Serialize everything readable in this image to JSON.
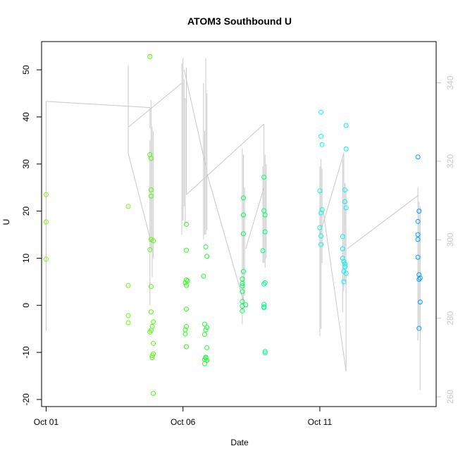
{
  "chart_data": {
    "type": "scatter",
    "title": "ATOM3 Southbound U",
    "xlabel": "Date",
    "ylabel": "U",
    "x_axis": {
      "type": "date",
      "range": [
        "2020-09-30T20:00",
        "2020-10-15T06:00"
      ],
      "ticks": [
        {
          "value": "2020-10-01",
          "label": "Oct 01"
        },
        {
          "value": "2020-10-06",
          "label": "Oct 06"
        },
        {
          "value": "2020-10-11",
          "label": "Oct 11"
        }
      ]
    },
    "ylim": [
      -21.5,
      56
    ],
    "y_ticks": [
      -20,
      -10,
      0,
      10,
      20,
      30,
      40,
      50
    ],
    "y2lim": [
      257.5,
      350.5
    ],
    "y2_ticks": [
      260,
      280,
      300,
      320,
      340
    ],
    "grid": false,
    "colors": {
      "line": "#c8c8c8",
      "axis": "#000000",
      "right_axis": "#c8c8c8"
    },
    "points": [
      {
        "x": "2020-10-01T00:00",
        "y": 23.5,
        "color": "#7cfc00"
      },
      {
        "x": "2020-10-01T00:00",
        "y": 17.7,
        "color": "#7cfc00"
      },
      {
        "x": "2020-10-01T00:00",
        "y": 9.8,
        "color": "#7cfc00"
      },
      {
        "x": "2020-10-04T00:00",
        "y": 21.0,
        "color": "#66ff00"
      },
      {
        "x": "2020-10-04T00:00",
        "y": 4.2,
        "color": "#66ff00"
      },
      {
        "x": "2020-10-04T00:00",
        "y": -2.2,
        "color": "#66ff00"
      },
      {
        "x": "2020-10-04T00:00",
        "y": -3.7,
        "color": "#66ff00"
      },
      {
        "x": "2020-10-04T19:00",
        "y": 52.8,
        "color": "#4cff00"
      },
      {
        "x": "2020-10-04T19:00",
        "y": 32.0,
        "color": "#4cff00"
      },
      {
        "x": "2020-10-04T20:00",
        "y": 31.2,
        "color": "#4cff00"
      },
      {
        "x": "2020-10-04T20:00",
        "y": 24.5,
        "color": "#4cff00"
      },
      {
        "x": "2020-10-04T20:00",
        "y": 23.2,
        "color": "#4cff00"
      },
      {
        "x": "2020-10-04T19:00",
        "y": 11.8,
        "color": "#4cff00"
      },
      {
        "x": "2020-10-04T20:00",
        "y": 14.0,
        "color": "#4cff00"
      },
      {
        "x": "2020-10-04T22:00",
        "y": 13.7,
        "color": "#4cff00"
      },
      {
        "x": "2020-10-04T20:00",
        "y": 4.0,
        "color": "#4cff00"
      },
      {
        "x": "2020-10-04T20:00",
        "y": -1.4,
        "color": "#4cff00"
      },
      {
        "x": "2020-10-04T22:00",
        "y": -3.5,
        "color": "#4cff00"
      },
      {
        "x": "2020-10-04T21:00",
        "y": -4.5,
        "color": "#4cff00"
      },
      {
        "x": "2020-10-04T20:00",
        "y": -5.3,
        "color": "#4cff00"
      },
      {
        "x": "2020-10-04T19:00",
        "y": -5.7,
        "color": "#4cff00"
      },
      {
        "x": "2020-10-04T22:00",
        "y": -8.1,
        "color": "#4cff00"
      },
      {
        "x": "2020-10-04T22:00",
        "y": -10.3,
        "color": "#4cff00"
      },
      {
        "x": "2020-10-04T21:00",
        "y": -10.7,
        "color": "#4cff00"
      },
      {
        "x": "2020-10-04T21:00",
        "y": -11.1,
        "color": "#4cff00"
      },
      {
        "x": "2020-10-04T22:00",
        "y": -18.7,
        "color": "#4cff00"
      },
      {
        "x": "2020-10-06T03:00",
        "y": 17.2,
        "color": "#2dff1a"
      },
      {
        "x": "2020-10-06T03:00",
        "y": 11.7,
        "color": "#2dff1a"
      },
      {
        "x": "2020-10-06T03:00",
        "y": 5.4,
        "color": "#2dff1a"
      },
      {
        "x": "2020-10-06T04:00",
        "y": 5.2,
        "color": "#2dff1a"
      },
      {
        "x": "2020-10-06T02:00",
        "y": 4.8,
        "color": "#2dff1a"
      },
      {
        "x": "2020-10-06T03:00",
        "y": 4.2,
        "color": "#2dff1a"
      },
      {
        "x": "2020-10-06T03:00",
        "y": -0.8,
        "color": "#2dff1a"
      },
      {
        "x": "2020-10-06T03:00",
        "y": -4.5,
        "color": "#2dff1a"
      },
      {
        "x": "2020-10-06T02:00",
        "y": -5.2,
        "color": "#2dff1a"
      },
      {
        "x": "2020-10-06T02:00",
        "y": -6.1,
        "color": "#2dff1a"
      },
      {
        "x": "2020-10-06T03:00",
        "y": -8.8,
        "color": "#2dff1a"
      },
      {
        "x": "2020-10-06T20:00",
        "y": 12.4,
        "color": "#1aff2d"
      },
      {
        "x": "2020-10-06T21:00",
        "y": 10.4,
        "color": "#1aff2d"
      },
      {
        "x": "2020-10-06T18:00",
        "y": 6.2,
        "color": "#1aff2d"
      },
      {
        "x": "2020-10-06T19:00",
        "y": -4.0,
        "color": "#1aff2d"
      },
      {
        "x": "2020-10-06T21:00",
        "y": -4.7,
        "color": "#1aff2d"
      },
      {
        "x": "2020-10-06T20:00",
        "y": -5.2,
        "color": "#1aff2d"
      },
      {
        "x": "2020-10-06T19:00",
        "y": -6.2,
        "color": "#1aff2d"
      },
      {
        "x": "2020-10-06T21:00",
        "y": -9.0,
        "color": "#1aff2d"
      },
      {
        "x": "2020-10-06T20:00",
        "y": -11.0,
        "color": "#1aff2d"
      },
      {
        "x": "2020-10-06T19:00",
        "y": -11.5,
        "color": "#1aff2d"
      },
      {
        "x": "2020-10-06T21:00",
        "y": -11.7,
        "color": "#1aff2d"
      },
      {
        "x": "2020-10-06T19:00",
        "y": -12.4,
        "color": "#1aff2d"
      },
      {
        "x": "2020-10-06T20:00",
        "y": -11.2,
        "color": "#1aff2d"
      },
      {
        "x": "2020-10-08T05:00",
        "y": 22.8,
        "color": "#00ff55"
      },
      {
        "x": "2020-10-08T05:00",
        "y": 19.2,
        "color": "#00ff55"
      },
      {
        "x": "2020-10-08T05:00",
        "y": 15.2,
        "color": "#00ff55"
      },
      {
        "x": "2020-10-08T05:00",
        "y": 7.2,
        "color": "#00ff55"
      },
      {
        "x": "2020-10-08T04:00",
        "y": 5.6,
        "color": "#00ff55"
      },
      {
        "x": "2020-10-08T04:00",
        "y": 4.6,
        "color": "#00ff55"
      },
      {
        "x": "2020-10-08T04:00",
        "y": 4.1,
        "color": "#00ff55"
      },
      {
        "x": "2020-10-08T04:00",
        "y": 2.9,
        "color": "#00ff55"
      },
      {
        "x": "2020-10-08T04:00",
        "y": 0.8,
        "color": "#00ff55"
      },
      {
        "x": "2020-10-08T07:00",
        "y": 0.1,
        "color": "#00ff55"
      },
      {
        "x": "2020-10-08T04:00",
        "y": -0.2,
        "color": "#00ff55"
      },
      {
        "x": "2020-10-08T04:00",
        "y": -1.2,
        "color": "#00ff55"
      },
      {
        "x": "2020-10-08T23:00",
        "y": 27.2,
        "color": "#00ff80"
      },
      {
        "x": "2020-10-08T23:00",
        "y": 20.1,
        "color": "#00ff80"
      },
      {
        "x": "2020-10-09T00:00",
        "y": 19.2,
        "color": "#00ff80"
      },
      {
        "x": "2020-10-09T00:00",
        "y": 15.6,
        "color": "#00ff80"
      },
      {
        "x": "2020-10-08T22:00",
        "y": 11.6,
        "color": "#00ff80"
      },
      {
        "x": "2020-10-09T00:00",
        "y": 4.8,
        "color": "#00ff80"
      },
      {
        "x": "2020-10-08T23:00",
        "y": 4.5,
        "color": "#00ff80"
      },
      {
        "x": "2020-10-08T23:00",
        "y": 0.2,
        "color": "#00ff80"
      },
      {
        "x": "2020-10-08T23:00",
        "y": -0.3,
        "color": "#00ff80"
      },
      {
        "x": "2020-10-08T23:00",
        "y": -0.5,
        "color": "#00ff80"
      },
      {
        "x": "2020-10-09T00:00",
        "y": -9.8,
        "color": "#00ff80"
      },
      {
        "x": "2020-10-09T00:00",
        "y": -10.1,
        "color": "#00ff80"
      },
      {
        "x": "2020-10-11T01:00",
        "y": 41.0,
        "color": "#00ffe0"
      },
      {
        "x": "2020-10-11T01:00",
        "y": 35.9,
        "color": "#00ffe0"
      },
      {
        "x": "2020-10-11T02:00",
        "y": 34.1,
        "color": "#00ffe0"
      },
      {
        "x": "2020-10-11T00:00",
        "y": 24.3,
        "color": "#00ffe0"
      },
      {
        "x": "2020-10-11T02:00",
        "y": 20.3,
        "color": "#00ffe0"
      },
      {
        "x": "2020-10-11T01:00",
        "y": 19.6,
        "color": "#00ffe0"
      },
      {
        "x": "2020-10-11T00:00",
        "y": 16.5,
        "color": "#00ffe0"
      },
      {
        "x": "2020-10-11T01:00",
        "y": 14.7,
        "color": "#00ffe0"
      },
      {
        "x": "2020-10-11T01:00",
        "y": 12.9,
        "color": "#00ffe0"
      },
      {
        "x": "2020-10-11T23:00",
        "y": 38.2,
        "color": "#00f0ff"
      },
      {
        "x": "2020-10-11T23:00",
        "y": 33.2,
        "color": "#00f0ff"
      },
      {
        "x": "2020-10-11T22:00",
        "y": 24.5,
        "color": "#00f0ff"
      },
      {
        "x": "2020-10-11T22:00",
        "y": 22.0,
        "color": "#00f0ff"
      },
      {
        "x": "2020-10-11T23:00",
        "y": 20.7,
        "color": "#00f0ff"
      },
      {
        "x": "2020-10-11T20:00",
        "y": 14.6,
        "color": "#00f0ff"
      },
      {
        "x": "2020-10-11T20:00",
        "y": 12.0,
        "color": "#00f0ff"
      },
      {
        "x": "2020-10-11T20:00",
        "y": 10.0,
        "color": "#00f0ff"
      },
      {
        "x": "2020-10-11T21:00",
        "y": 9.3,
        "color": "#00f0ff"
      },
      {
        "x": "2020-10-11T22:00",
        "y": 8.8,
        "color": "#00f0ff"
      },
      {
        "x": "2020-10-11T22:00",
        "y": 8.2,
        "color": "#00f0ff"
      },
      {
        "x": "2020-10-11T21:00",
        "y": 7.2,
        "color": "#00f0ff"
      },
      {
        "x": "2020-10-11T23:00",
        "y": 6.8,
        "color": "#00f0ff"
      },
      {
        "x": "2020-10-11T21:00",
        "y": 5.0,
        "color": "#00f0ff"
      },
      {
        "x": "2020-10-14T14:00",
        "y": 31.5,
        "color": "#00a0ff"
      },
      {
        "x": "2020-10-14T15:00",
        "y": 20.0,
        "color": "#00a0ff"
      },
      {
        "x": "2020-10-14T14:00",
        "y": 17.8,
        "color": "#00a0ff"
      },
      {
        "x": "2020-10-14T14:00",
        "y": 15.0,
        "color": "#00a0ff"
      },
      {
        "x": "2020-10-14T14:00",
        "y": 14.0,
        "color": "#00a0ff"
      },
      {
        "x": "2020-10-14T14:00",
        "y": 10.2,
        "color": "#00a0ff"
      },
      {
        "x": "2020-10-14T15:00",
        "y": 6.5,
        "color": "#00a0ff"
      },
      {
        "x": "2020-10-14T16:00",
        "y": 5.8,
        "color": "#00a0ff"
      },
      {
        "x": "2020-10-14T15:00",
        "y": 5.5,
        "color": "#00a0ff"
      },
      {
        "x": "2020-10-14T16:00",
        "y": 0.7,
        "color": "#00a0ff"
      },
      {
        "x": "2020-10-14T15:00",
        "y": -4.9,
        "color": "#00a0ff"
      }
    ],
    "lines": [
      {
        "x1": "2020-10-01T00:00",
        "y1": 43.3,
        "x2": "2020-10-01T00:00",
        "y2": -5.4
      },
      {
        "x1": "2020-10-01T00:00",
        "y1": 43.3,
        "x2": "2020-10-04T19:00",
        "y2": 42.0
      },
      {
        "x1": "2020-10-04T19:00",
        "y1": 42.0,
        "x2": "2020-10-04T19:00",
        "y2": 37.6
      },
      {
        "x1": "2020-10-04T00:00",
        "y1": 32.3,
        "x2": "2020-10-04T00:00",
        "y2": 51.0
      },
      {
        "x1": "2020-10-04T00:00",
        "y1": 37.8,
        "x2": "2020-10-05T23:00",
        "y2": 47.2
      },
      {
        "x1": "2020-10-04T00:00",
        "y1": 32.3,
        "x2": "2020-10-04T20:00",
        "y2": 13.4
      },
      {
        "x1": "2020-10-04T19:00",
        "y1": 35.0,
        "x2": "2020-10-04T19:00",
        "y2": 0.0
      },
      {
        "x1": "2020-10-04T20:00",
        "y1": 43.5,
        "x2": "2020-10-04T20:00",
        "y2": 12.0
      },
      {
        "x1": "2020-10-04T21:00",
        "y1": 38.0,
        "x2": "2020-10-04T21:00",
        "y2": 6.0
      },
      {
        "x1": "2020-10-04T22:00",
        "y1": 37.0,
        "x2": "2020-10-04T22:00",
        "y2": 10.0
      },
      {
        "x1": "2020-10-05T23:00",
        "y1": 51.4,
        "x2": "2020-10-05T23:00",
        "y2": 15.0
      },
      {
        "x1": "2020-10-06T00:00",
        "y1": 52.5,
        "x2": "2020-10-06T00:00",
        "y2": 18.0
      },
      {
        "x1": "2020-10-06T01:00",
        "y1": 48.0,
        "x2": "2020-10-06T01:00",
        "y2": 21.0
      },
      {
        "x1": "2020-10-06T02:00",
        "y1": 44.0,
        "x2": "2020-10-06T02:00",
        "y2": 17.0
      },
      {
        "x1": "2020-10-06T03:00",
        "y1": 50.5,
        "x2": "2020-10-06T03:00",
        "y2": 23.5
      },
      {
        "x1": "2020-10-06T01:00",
        "y1": 50.0,
        "x2": "2020-10-06T20:00",
        "y2": 29.5
      },
      {
        "x1": "2020-10-06T03:00",
        "y1": 23.5,
        "x2": "2020-10-08T23:00",
        "y2": 38.5
      },
      {
        "x1": "2020-10-06T18:00",
        "y1": 47.2,
        "x2": "2020-10-06T18:00",
        "y2": 14.0
      },
      {
        "x1": "2020-10-06T19:00",
        "y1": 37.0,
        "x2": "2020-10-06T19:00",
        "y2": 15.0
      },
      {
        "x1": "2020-10-06T20:00",
        "y1": 52.5,
        "x2": "2020-10-06T20:00",
        "y2": 15.0
      },
      {
        "x1": "2020-10-06T21:00",
        "y1": 45.0,
        "x2": "2020-10-06T21:00",
        "y2": 16.0
      },
      {
        "x1": "2020-10-06T21:00",
        "y1": 28.0,
        "x2": "2020-10-08T05:00",
        "y2": 1.0
      },
      {
        "x1": "2020-10-08T04:00",
        "y1": 33.3,
        "x2": "2020-10-08T04:00",
        "y2": -4.0
      },
      {
        "x1": "2020-10-08T05:00",
        "y1": 32.0,
        "x2": "2020-10-08T05:00",
        "y2": 0.0
      },
      {
        "x1": "2020-10-08T06:00",
        "y1": 25.0,
        "x2": "2020-10-08T06:00",
        "y2": 2.0
      },
      {
        "x1": "2020-10-08T07:00",
        "y1": 12.0,
        "x2": "2020-10-08T23:00",
        "y2": 25.0
      },
      {
        "x1": "2020-10-08T22:00",
        "y1": 29.5,
        "x2": "2020-10-08T22:00",
        "y2": 9.0
      },
      {
        "x1": "2020-10-08T23:00",
        "y1": 38.5,
        "x2": "2020-10-08T23:00",
        "y2": 9.0
      },
      {
        "x1": "2020-10-09T00:00",
        "y1": 32.0,
        "x2": "2020-10-09T00:00",
        "y2": 8.0
      },
      {
        "x1": "2020-10-09T01:00",
        "y1": 30.0,
        "x2": "2020-10-09T01:00",
        "y2": 10.0
      },
      {
        "x1": "2020-10-11T00:00",
        "y1": 29.5,
        "x2": "2020-10-11T00:00",
        "y2": -6.5
      },
      {
        "x1": "2020-10-11T01:00",
        "y1": 31.0,
        "x2": "2020-10-11T01:00",
        "y2": -5.0
      },
      {
        "x1": "2020-10-11T02:00",
        "y1": 29.0,
        "x2": "2020-10-11T02:00",
        "y2": 9.0
      },
      {
        "x1": "2020-10-11T00:00",
        "y1": 15.0,
        "x2": "2020-10-11T21:00",
        "y2": 32.3
      },
      {
        "x1": "2020-10-11T03:00",
        "y1": 20.0,
        "x2": "2020-10-11T23:00",
        "y2": -14.0
      },
      {
        "x1": "2020-10-11T20:00",
        "y1": 31.0,
        "x2": "2020-10-11T20:00",
        "y2": -1.5
      },
      {
        "x1": "2020-10-11T21:00",
        "y1": 32.3,
        "x2": "2020-10-11T21:00",
        "y2": 3.0
      },
      {
        "x1": "2020-10-11T22:00",
        "y1": 26.0,
        "x2": "2020-10-11T22:00",
        "y2": 5.0
      },
      {
        "x1": "2020-10-11T23:00",
        "y1": 24.0,
        "x2": "2020-10-11T23:00",
        "y2": -14.0
      },
      {
        "x1": "2020-10-12T00:00",
        "y1": 12.0,
        "x2": "2020-10-14T14:00",
        "y2": 23.3
      },
      {
        "x1": "2020-10-14T14:00",
        "y1": 25.0,
        "x2": "2020-10-14T14:00",
        "y2": -7.5
      },
      {
        "x1": "2020-10-14T15:00",
        "y1": 22.0,
        "x2": "2020-10-14T15:00",
        "y2": -5.0
      },
      {
        "x1": "2020-10-14T16:00",
        "y1": 21.0,
        "x2": "2020-10-14T16:00",
        "y2": -18.0
      }
    ]
  }
}
